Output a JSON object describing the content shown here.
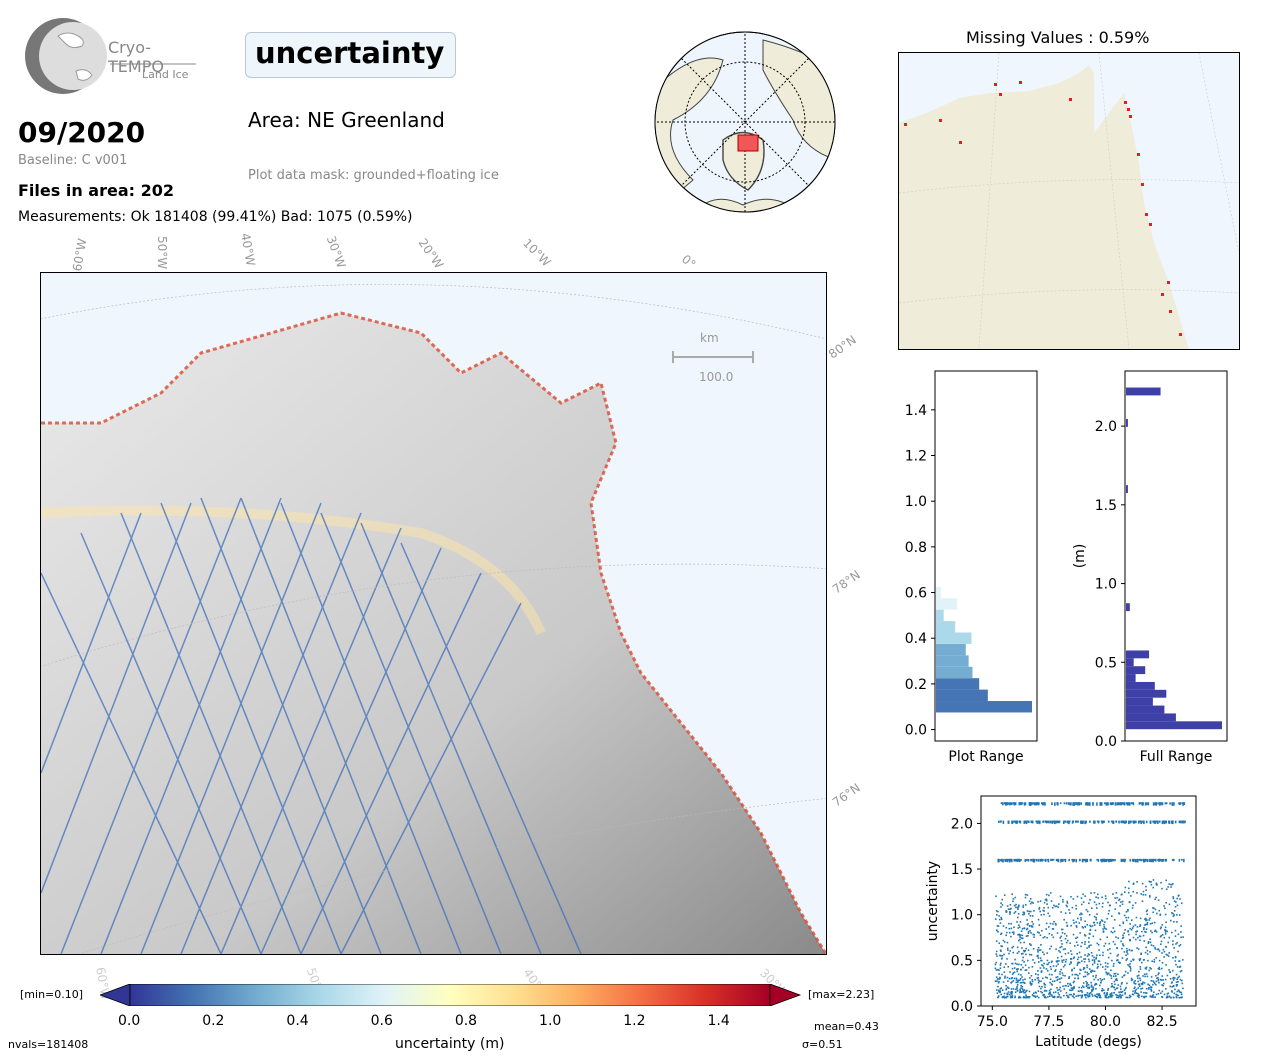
{
  "logo": {
    "name": "Cryo-TEMPO",
    "sub": "Land Ice"
  },
  "header": {
    "date": "09/2020",
    "baseline": "Baseline: C v001",
    "files": "Files in area: 202",
    "measurements": "Measurements: Ok 181408 (99.41%) Bad: 1075 (0.59%)",
    "title": "uncertainty",
    "area": "Area: NE Greenland",
    "mask": "Plot data mask: grounded+floating ice"
  },
  "map": {
    "lon_labels": [
      "60°W",
      "50°W",
      "40°W",
      "30°W",
      "20°W",
      "10°W",
      "0°"
    ],
    "lat_labels": [
      "80°N",
      "78°N",
      "76°N"
    ],
    "bottom_lon_labels": [
      "60°W",
      "50°W",
      "40°W",
      "30°W"
    ],
    "scalebar_unit": "km",
    "scalebar_value": "100.0"
  },
  "colorbar": {
    "label": "uncertainty (m)",
    "min_label": "[min=0.10]",
    "max_label": "[max=2.23]",
    "ticks": [
      "0.0",
      "0.2",
      "0.4",
      "0.6",
      "0.8",
      "1.0",
      "1.2",
      "1.4"
    ],
    "colors": [
      "#313695",
      "#4575b4",
      "#74add1",
      "#abd9e9",
      "#e0f3f8",
      "#ffffbf",
      "#fee090",
      "#fdae61",
      "#f46d43",
      "#d73027",
      "#a50026"
    ]
  },
  "stats": {
    "nvals": "nvals=181408",
    "mean": "mean=0.43",
    "sigma": "σ=0.51"
  },
  "missing": {
    "title": "Missing Values : 0.59%"
  },
  "chart_data": [
    {
      "type": "bar",
      "orientation": "horizontal",
      "xlabel": "Plot Range",
      "ylabel": "",
      "ylim": [
        -0.05,
        1.57
      ],
      "yticks": [
        "0.0",
        "0.2",
        "0.4",
        "0.6",
        "0.8",
        "1.0",
        "1.2",
        "1.4"
      ],
      "bins": [
        {
          "y": 0.1,
          "count": 1.0
        },
        {
          "y": 0.15,
          "count": 0.54
        },
        {
          "y": 0.2,
          "count": 0.45
        },
        {
          "y": 0.25,
          "count": 0.38
        },
        {
          "y": 0.3,
          "count": 0.34
        },
        {
          "y": 0.35,
          "count": 0.31
        },
        {
          "y": 0.4,
          "count": 0.37
        },
        {
          "y": 0.45,
          "count": 0.2
        },
        {
          "y": 0.5,
          "count": 0.08
        },
        {
          "y": 0.55,
          "count": 0.22
        },
        {
          "y": 0.6,
          "count": 0.05
        }
      ]
    },
    {
      "type": "bar",
      "orientation": "horizontal",
      "xlabel": "Full Range",
      "ylabel": "(m)",
      "ylim": [
        0.0,
        2.35
      ],
      "yticks": [
        "0.0",
        "0.5",
        "1.0",
        "1.5",
        "2.0"
      ],
      "bar_color": "#3f3fa8",
      "bins": [
        {
          "y": 0.1,
          "count": 1.0
        },
        {
          "y": 0.15,
          "count": 0.52
        },
        {
          "y": 0.2,
          "count": 0.4
        },
        {
          "y": 0.25,
          "count": 0.28
        },
        {
          "y": 0.3,
          "count": 0.42
        },
        {
          "y": 0.35,
          "count": 0.3
        },
        {
          "y": 0.4,
          "count": 0.1
        },
        {
          "y": 0.45,
          "count": 0.2
        },
        {
          "y": 0.5,
          "count": 0.08
        },
        {
          "y": 0.55,
          "count": 0.24
        },
        {
          "y": 0.85,
          "count": 0.04
        },
        {
          "y": 1.6,
          "count": 0.02
        },
        {
          "y": 2.02,
          "count": 0.02
        },
        {
          "y": 2.22,
          "count": 0.36
        }
      ]
    },
    {
      "type": "scatter",
      "xlabel": "Latitude (degs)",
      "ylabel": "uncertainty",
      "xlim": [
        74.5,
        84.0
      ],
      "ylim": [
        0.0,
        2.3
      ],
      "xticks": [
        "75.0",
        "77.5",
        "80.0",
        "82.5"
      ],
      "yticks": [
        "0.0",
        "0.5",
        "1.0",
        "1.5",
        "2.0"
      ],
      "color": "#1f77b4",
      "bands": [
        {
          "y": 2.22,
          "x_range": [
            75.2,
            83.5
          ]
        },
        {
          "y": 2.02,
          "x_range": [
            75.2,
            83.5
          ]
        },
        {
          "y": 1.6,
          "x_range": [
            75.2,
            83.5
          ]
        }
      ],
      "bulk": {
        "x_range": [
          75.1,
          83.4
        ],
        "y_range": [
          0.1,
          1.4
        ]
      }
    }
  ]
}
